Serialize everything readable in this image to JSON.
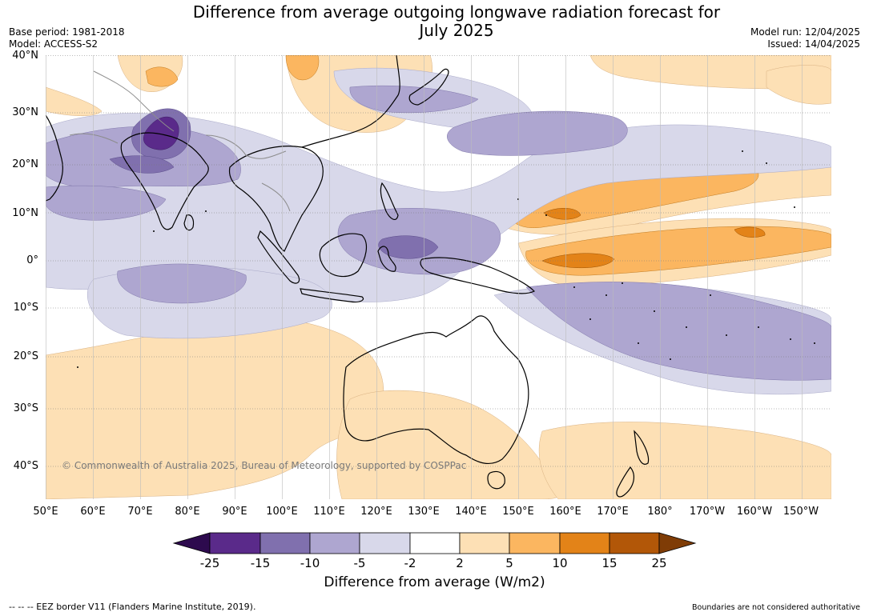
{
  "header": {
    "title_line1": "Difference from average outgoing longwave radiation forecast for",
    "title_line2": "July 2025",
    "base_period": "Base period: 1981-2018",
    "model": "Model: ACCESS-S2",
    "model_run": "Model run: 12/04/2025",
    "issued": "Issued: 14/04/2025"
  },
  "map": {
    "lat_labels": [
      "40°N",
      "30°N",
      "20°N",
      "10°N",
      "0°",
      "10°S",
      "20°S",
      "30°S",
      "40°S"
    ],
    "lon_labels": [
      "50°E",
      "60°E",
      "70°E",
      "80°E",
      "90°E",
      "100°E",
      "110°E",
      "120°E",
      "130°E",
      "140°E",
      "150°E",
      "160°E",
      "170°E",
      "180°",
      "170°W",
      "160°W",
      "150°W"
    ],
    "copyright": "© Commonwealth of Australia 2025, Bureau of Meteorology, supported by COSPPac",
    "colors": {
      "land_outline": "#000000",
      "border": "#8c8c8c",
      "grid": "#777777"
    }
  },
  "colorbar": {
    "ticks": [
      "-25",
      "-15",
      "-10",
      "-5",
      "-2",
      "2",
      "5",
      "10",
      "15",
      "25"
    ],
    "colors": [
      "#2d0a4e",
      "#5a2a8a",
      "#8070ae",
      "#aea6d0",
      "#d8d8ea",
      "#ffffff",
      "#fde0b5",
      "#fbb660",
      "#e38318",
      "#b25708",
      "#7f3c06"
    ],
    "label": "Difference from average (W/m2)"
  },
  "footer": {
    "eez_note": "--  --  -- EEZ border V11 (Flanders Marine Institute, 2019).",
    "disclaimer": "Boundaries are not considered authoritative"
  }
}
